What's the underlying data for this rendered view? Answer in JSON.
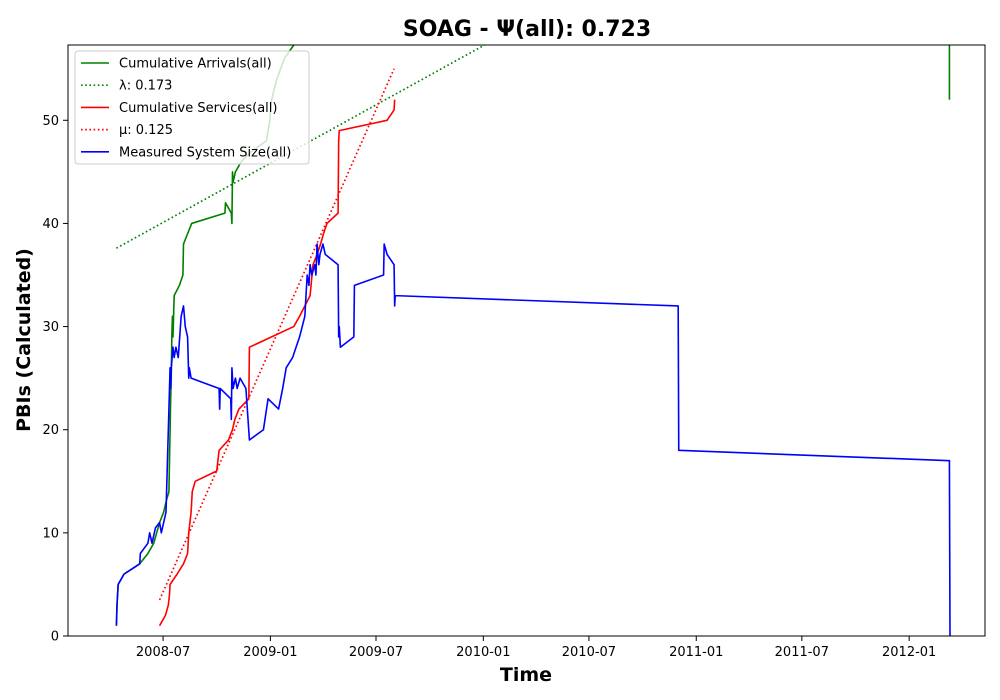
{
  "chart_data": {
    "type": "line",
    "title": "SOAG -  Ψ(all): 0.723",
    "xlabel": "Time",
    "ylabel": "PBIs (Calculated)",
    "xlim": [
      "2008-01-20",
      "2012-05-10"
    ],
    "ylim": [
      0,
      57.3
    ],
    "grid": false,
    "legend_position": "top-left",
    "x_ticks": [
      "2008-07",
      "2009-01",
      "2009-07",
      "2010-01",
      "2010-07",
      "2011-01",
      "2011-07",
      "2012-01"
    ],
    "y_ticks": [
      0,
      10,
      20,
      30,
      40,
      50
    ],
    "series": [
      {
        "name": "Cumulative Arrivals(all)",
        "color": "#008000",
        "style": "solid",
        "points": [
          [
            "2008-04-12",
            1
          ],
          [
            "2008-04-13",
            3
          ],
          [
            "2008-04-15",
            5
          ],
          [
            "2008-04-25",
            6
          ],
          [
            "2008-05-22",
            7
          ],
          [
            "2008-06-05",
            8
          ],
          [
            "2008-06-15",
            9
          ],
          [
            "2008-06-25",
            11
          ],
          [
            "2008-07-02",
            12
          ],
          [
            "2008-07-06",
            13
          ],
          [
            "2008-07-11",
            14
          ],
          [
            "2008-07-14",
            23
          ],
          [
            "2008-07-15",
            25
          ],
          [
            "2008-07-16",
            29
          ],
          [
            "2008-07-17",
            31
          ],
          [
            "2008-07-18",
            29
          ],
          [
            "2008-07-20",
            33
          ],
          [
            "2008-07-29",
            34
          ],
          [
            "2008-08-04",
            35
          ],
          [
            "2008-08-05",
            38
          ],
          [
            "2008-08-12",
            39
          ],
          [
            "2008-08-19",
            40
          ],
          [
            "2008-10-15",
            41
          ],
          [
            "2008-10-16",
            42
          ],
          [
            "2008-10-26",
            41
          ],
          [
            "2008-10-27",
            40
          ],
          [
            "2008-10-28",
            45
          ],
          [
            "2008-10-29",
            44
          ],
          [
            "2008-11-02",
            45
          ],
          [
            "2008-11-12",
            46
          ],
          [
            "2008-11-30",
            47
          ],
          [
            "2008-12-25",
            48
          ],
          [
            "2008-12-31",
            50
          ],
          [
            "2009-01-03",
            52
          ],
          [
            "2009-01-12",
            54
          ],
          [
            "2009-01-25",
            56
          ],
          [
            "2009-02-10",
            57.3
          ]
        ]
      },
      {
        "name": "Cumulative Arrivals(all)",
        "color": "#008000",
        "style": "solid",
        "points": [
          [
            "2012-03-10",
            57.3
          ],
          [
            "2012-03-10",
            52
          ]
        ]
      },
      {
        "name": "λ: 0.173",
        "color": "#008000",
        "style": "dotted",
        "points": [
          [
            "2008-04-12",
            37.6
          ],
          [
            "2010-01-03",
            57.3
          ]
        ]
      },
      {
        "name": "Cumulative Services(all)",
        "color": "#ff0000",
        "style": "solid",
        "points": [
          [
            "2008-06-25",
            1
          ],
          [
            "2008-07-05",
            2
          ],
          [
            "2008-07-10",
            3
          ],
          [
            "2008-07-12",
            4
          ],
          [
            "2008-07-13",
            5
          ],
          [
            "2008-07-25",
            6
          ],
          [
            "2008-08-05",
            7
          ],
          [
            "2008-08-12",
            8
          ],
          [
            "2008-08-14",
            10
          ],
          [
            "2008-08-18",
            12
          ],
          [
            "2008-08-20",
            14
          ],
          [
            "2008-08-25",
            15
          ],
          [
            "2008-10-01",
            16
          ],
          [
            "2008-10-05",
            18
          ],
          [
            "2008-10-21",
            19
          ],
          [
            "2008-10-28",
            20
          ],
          [
            "2008-11-01",
            21
          ],
          [
            "2008-11-08",
            22
          ],
          [
            "2008-11-25",
            23
          ],
          [
            "2008-11-26",
            28
          ],
          [
            "2009-02-10",
            30
          ],
          [
            "2009-02-20",
            31
          ],
          [
            "2009-03-01",
            32
          ],
          [
            "2009-03-10",
            33
          ],
          [
            "2009-03-15",
            36
          ],
          [
            "2009-03-22",
            37
          ],
          [
            "2009-03-28",
            38
          ],
          [
            "2009-04-02",
            39
          ],
          [
            "2009-04-08",
            40
          ],
          [
            "2009-04-27",
            41
          ],
          [
            "2009-04-28",
            48
          ],
          [
            "2009-04-29",
            49
          ],
          [
            "2009-07-20",
            50
          ],
          [
            "2009-08-01",
            51
          ],
          [
            "2009-08-02",
            52
          ]
        ]
      },
      {
        "name": "μ: 0.125",
        "color": "#ff0000",
        "style": "dotted",
        "points": [
          [
            "2008-06-25",
            3.5
          ],
          [
            "2009-08-01",
            55
          ]
        ]
      },
      {
        "name": "Measured System Size(all)",
        "color": "#0000ff",
        "style": "solid",
        "points": [
          [
            "2008-04-12",
            1
          ],
          [
            "2008-04-13",
            3
          ],
          [
            "2008-04-15",
            5
          ],
          [
            "2008-04-25",
            6
          ],
          [
            "2008-05-22",
            7
          ],
          [
            "2008-05-23",
            8
          ],
          [
            "2008-06-05",
            9
          ],
          [
            "2008-06-08",
            10
          ],
          [
            "2008-06-12",
            9
          ],
          [
            "2008-06-18",
            10.5
          ],
          [
            "2008-06-25",
            11
          ],
          [
            "2008-06-28",
            10
          ],
          [
            "2008-07-06",
            12
          ],
          [
            "2008-07-11",
            22
          ],
          [
            "2008-07-13",
            26
          ],
          [
            "2008-07-14",
            24
          ],
          [
            "2008-07-15",
            26
          ],
          [
            "2008-07-18",
            28
          ],
          [
            "2008-07-20",
            27
          ],
          [
            "2008-07-23",
            28
          ],
          [
            "2008-07-27",
            27
          ],
          [
            "2008-08-01",
            31
          ],
          [
            "2008-08-05",
            32
          ],
          [
            "2008-08-08",
            30
          ],
          [
            "2008-08-12",
            29
          ],
          [
            "2008-08-14",
            25
          ],
          [
            "2008-08-15",
            26
          ],
          [
            "2008-08-18",
            25
          ],
          [
            "2008-10-05",
            24
          ],
          [
            "2008-10-06",
            22
          ],
          [
            "2008-10-07",
            24
          ],
          [
            "2008-10-25",
            23
          ],
          [
            "2008-10-26",
            21
          ],
          [
            "2008-10-27",
            26
          ],
          [
            "2008-10-29",
            24
          ],
          [
            "2008-11-02",
            25
          ],
          [
            "2008-11-05",
            24
          ],
          [
            "2008-11-10",
            25
          ],
          [
            "2008-11-20",
            24
          ],
          [
            "2008-11-26",
            19
          ],
          [
            "2008-12-20",
            20
          ],
          [
            "2008-12-28",
            23
          ],
          [
            "2009-01-15",
            22
          ],
          [
            "2009-01-22",
            24
          ],
          [
            "2009-01-28",
            26
          ],
          [
            "2009-02-08",
            27
          ],
          [
            "2009-02-20",
            29
          ],
          [
            "2009-03-01",
            31
          ],
          [
            "2009-03-05",
            35
          ],
          [
            "2009-03-08",
            34
          ],
          [
            "2009-03-10",
            36
          ],
          [
            "2009-03-13",
            35
          ],
          [
            "2009-03-18",
            36
          ],
          [
            "2009-03-20",
            35
          ],
          [
            "2009-03-22",
            38
          ],
          [
            "2009-03-25",
            36
          ],
          [
            "2009-03-27",
            37
          ],
          [
            "2009-04-01",
            38
          ],
          [
            "2009-04-05",
            37
          ],
          [
            "2009-04-27",
            36
          ],
          [
            "2009-04-28",
            29
          ],
          [
            "2009-04-29",
            30
          ],
          [
            "2009-05-01",
            28
          ],
          [
            "2009-05-24",
            29
          ],
          [
            "2009-05-25",
            34
          ],
          [
            "2009-07-14",
            35
          ],
          [
            "2009-07-15",
            38
          ],
          [
            "2009-07-20",
            37
          ],
          [
            "2009-08-01",
            36
          ],
          [
            "2009-08-02",
            32
          ],
          [
            "2009-08-03",
            33
          ],
          [
            "2010-12-01",
            32
          ],
          [
            "2010-12-02",
            18
          ],
          [
            "2012-03-10",
            17
          ],
          [
            "2012-03-11",
            0
          ]
        ]
      }
    ],
    "legend": [
      {
        "label": "Cumulative Arrivals(all)",
        "color": "#008000",
        "style": "solid"
      },
      {
        "label": "λ: 0.173",
        "color": "#008000",
        "style": "dotted"
      },
      {
        "label": "Cumulative Services(all)",
        "color": "#ff0000",
        "style": "solid"
      },
      {
        "label": "μ: 0.125",
        "color": "#ff0000",
        "style": "dotted"
      },
      {
        "label": "Measured System Size(all)",
        "color": "#0000ff",
        "style": "solid"
      }
    ]
  }
}
